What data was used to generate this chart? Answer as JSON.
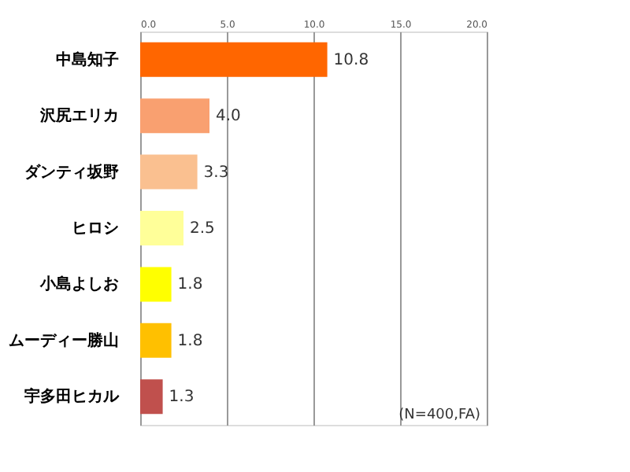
{
  "chart_data": {
    "type": "bar",
    "orientation": "horizontal",
    "categories": [
      "中島知子",
      "沢尻エリカ",
      "ダンティ坂野",
      "ヒロシ",
      "小島よしお",
      "ムーディー勝山",
      "宇多田ヒカル"
    ],
    "values": [
      10.8,
      4.0,
      3.3,
      2.5,
      1.8,
      1.8,
      1.3
    ],
    "colors": [
      "#ff6600",
      "#f9a070",
      "#fac090",
      "#ffff99",
      "#ffff00",
      "#ffc000",
      "#c0504d"
    ],
    "value_labels": [
      "10.8",
      "4.0",
      "3.3",
      "2.5",
      "1.8",
      "1.8",
      "1.3"
    ],
    "xlim": [
      0,
      20
    ],
    "xticks": [
      {
        "value": 0,
        "label": "0.0"
      },
      {
        "value": 5,
        "label": "5.0"
      },
      {
        "value": 10,
        "label": "10.0"
      },
      {
        "value": 15,
        "label": "15.0"
      },
      {
        "value": 20,
        "label": "20.0"
      }
    ],
    "grid": "x",
    "annotations": [
      "(N=400,FA)"
    ]
  }
}
